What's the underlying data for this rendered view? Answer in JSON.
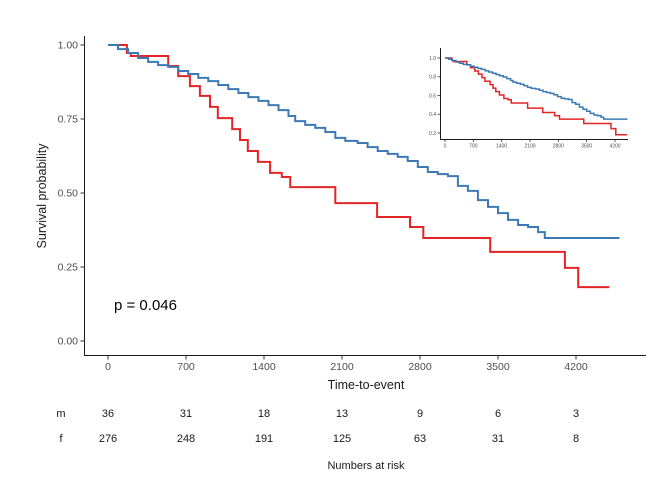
{
  "figure": {
    "background": "#ffffff",
    "axis_color": "#1a1a1a",
    "tick_text_color": "#4d4d4d"
  },
  "chart_data": {
    "type": "line",
    "subtype": "kaplan-meier-step",
    "title": "",
    "xlabel": "Time-to-event",
    "ylabel": "Survival probability",
    "annotation": "p = 0.046",
    "xlim": [
      0,
      4700
    ],
    "ylim": [
      0,
      1.05
    ],
    "grid": false,
    "legend": "none",
    "x_ticks": [
      {
        "value": 0,
        "label": "0"
      },
      {
        "value": 700,
        "label": "700"
      },
      {
        "value": 1400,
        "label": "1400"
      },
      {
        "value": 2100,
        "label": "2100"
      },
      {
        "value": 2800,
        "label": "2800"
      },
      {
        "value": 3500,
        "label": "3500"
      },
      {
        "value": 4200,
        "label": "4200"
      }
    ],
    "y_ticks": [
      {
        "value": 1.0,
        "label": "1.00"
      },
      {
        "value": 0.75,
        "label": "0.75"
      },
      {
        "value": 0.5,
        "label": "0.50"
      },
      {
        "value": 0.25,
        "label": "0.25"
      },
      {
        "value": 0.0,
        "label": "0.00"
      }
    ],
    "series": [
      {
        "name": "m",
        "color": "#E32528",
        "points": [
          [
            0,
            1.0
          ],
          [
            170,
            0.973
          ],
          [
            205,
            0.963
          ],
          [
            540,
            0.929
          ],
          [
            630,
            0.895
          ],
          [
            735,
            0.861
          ],
          [
            825,
            0.828
          ],
          [
            915,
            0.791
          ],
          [
            985,
            0.753
          ],
          [
            1115,
            0.716
          ],
          [
            1185,
            0.679
          ],
          [
            1255,
            0.642
          ],
          [
            1345,
            0.605
          ],
          [
            1455,
            0.568
          ],
          [
            1560,
            0.554
          ],
          [
            1635,
            0.52
          ],
          [
            2040,
            0.466
          ],
          [
            2415,
            0.419
          ],
          [
            2710,
            0.385
          ],
          [
            2830,
            0.348
          ],
          [
            3430,
            0.301
          ],
          [
            4100,
            0.247
          ],
          [
            4220,
            0.182
          ],
          [
            4500,
            0.182
          ]
        ]
      },
      {
        "name": "f",
        "color": "#3D7AB5",
        "points": [
          [
            0,
            1.0
          ],
          [
            90,
            0.986
          ],
          [
            180,
            0.973
          ],
          [
            270,
            0.956
          ],
          [
            360,
            0.943
          ],
          [
            450,
            0.932
          ],
          [
            540,
            0.926
          ],
          [
            630,
            0.912
          ],
          [
            720,
            0.902
          ],
          [
            810,
            0.889
          ],
          [
            900,
            0.878
          ],
          [
            990,
            0.865
          ],
          [
            1080,
            0.851
          ],
          [
            1170,
            0.838
          ],
          [
            1260,
            0.824
          ],
          [
            1350,
            0.811
          ],
          [
            1440,
            0.797
          ],
          [
            1530,
            0.78
          ],
          [
            1620,
            0.76
          ],
          [
            1680,
            0.743
          ],
          [
            1770,
            0.73
          ],
          [
            1860,
            0.72
          ],
          [
            1950,
            0.706
          ],
          [
            2040,
            0.686
          ],
          [
            2130,
            0.676
          ],
          [
            2240,
            0.669
          ],
          [
            2330,
            0.655
          ],
          [
            2420,
            0.642
          ],
          [
            2510,
            0.632
          ],
          [
            2600,
            0.622
          ],
          [
            2690,
            0.608
          ],
          [
            2780,
            0.588
          ],
          [
            2870,
            0.571
          ],
          [
            2960,
            0.564
          ],
          [
            3050,
            0.557
          ],
          [
            3140,
            0.524
          ],
          [
            3230,
            0.507
          ],
          [
            3320,
            0.476
          ],
          [
            3410,
            0.453
          ],
          [
            3500,
            0.432
          ],
          [
            3590,
            0.409
          ],
          [
            3680,
            0.392
          ],
          [
            3770,
            0.385
          ],
          [
            3860,
            0.368
          ],
          [
            3920,
            0.348
          ],
          [
            4590,
            0.348
          ]
        ]
      }
    ],
    "inset": {
      "y_ticks": [
        {
          "value": 1.0,
          "label": "1.0"
        },
        {
          "value": 0.8,
          "label": "0.8"
        },
        {
          "value": 0.6,
          "label": "0.6"
        },
        {
          "value": 0.4,
          "label": "0.4"
        },
        {
          "value": 0.2,
          "label": "0.2"
        }
      ],
      "x_ticks": [
        {
          "value": 0,
          "label": "0"
        },
        {
          "value": 700,
          "label": "700"
        },
        {
          "value": 1400,
          "label": "1400"
        },
        {
          "value": 2100,
          "label": "2100"
        },
        {
          "value": 2800,
          "label": "2800"
        },
        {
          "value": 3500,
          "label": "3500"
        },
        {
          "value": 4200,
          "label": "4200"
        }
      ]
    }
  },
  "risk_table": {
    "caption": "Numbers at risk",
    "time_points": [
      0,
      700,
      1400,
      2100,
      2800,
      3500,
      4200
    ],
    "rows": [
      {
        "label": "m",
        "values": [
          "36",
          "31",
          "18",
          "13",
          "9",
          "6",
          "3"
        ]
      },
      {
        "label": "f",
        "values": [
          "276",
          "248",
          "191",
          "125",
          "63",
          "31",
          "8"
        ]
      }
    ]
  }
}
